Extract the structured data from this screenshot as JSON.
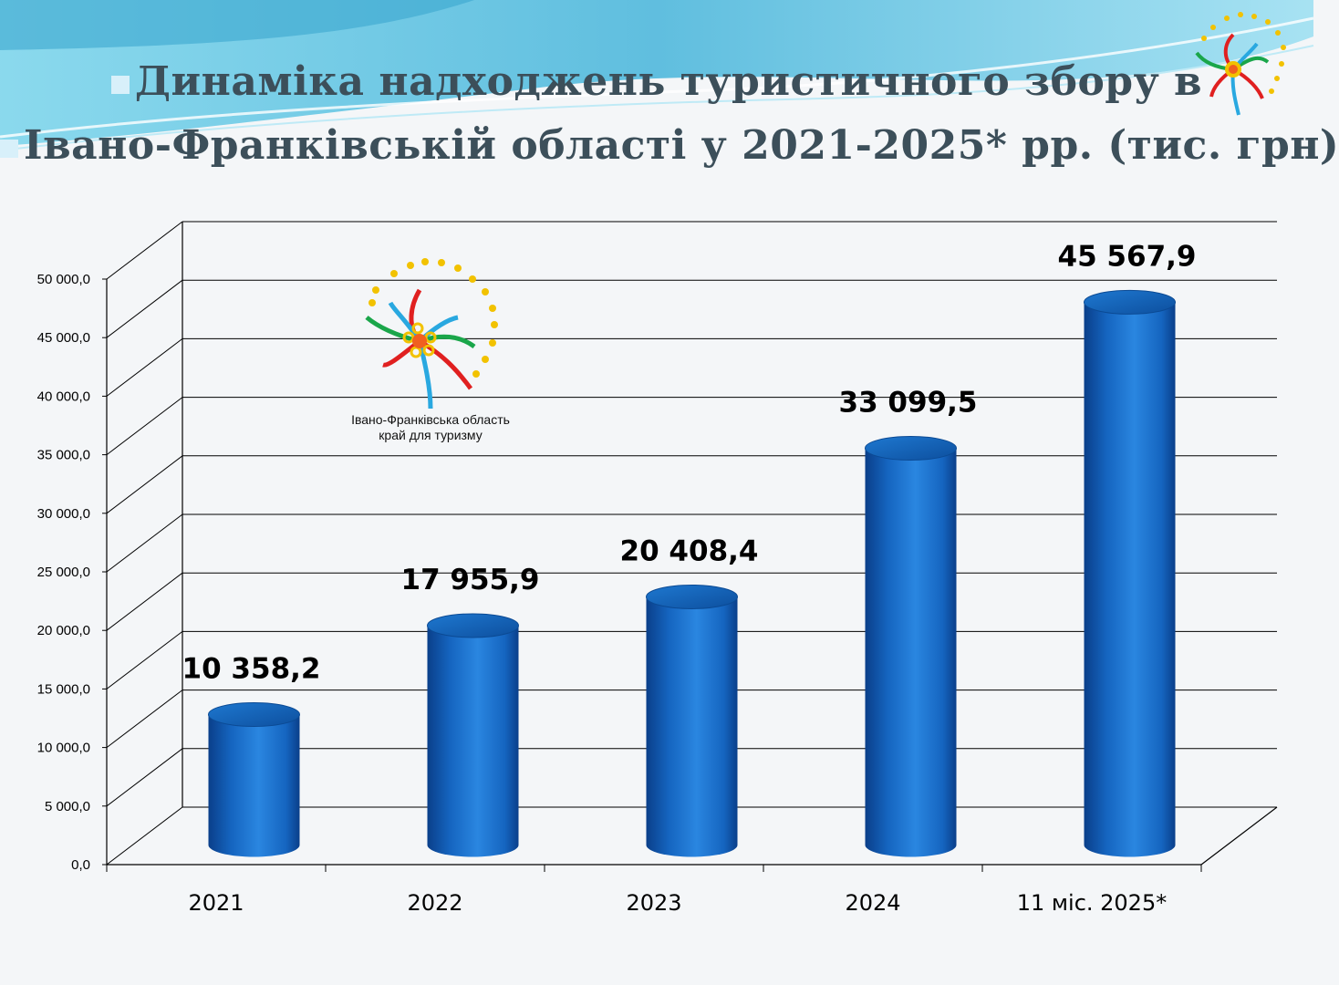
{
  "title": {
    "line1": "Динаміка надходжень туристичного збору в",
    "line2": "Івано-Франківській області у 2021-2025* рр. (тис. грн)"
  },
  "logo": {
    "caption_line1": "Івано-Франківська область",
    "caption_line2": "край для туризму"
  },
  "colors": {
    "bar": "#1565c0",
    "bar_highlight": "#2a86e0",
    "grid": "#000000",
    "header_wave": "#5bc5e4"
  },
  "chart_data": {
    "type": "bar",
    "categories": [
      "2021",
      "2022",
      "2023",
      "2024",
      "11 міс. 2025*"
    ],
    "values": [
      10358.2,
      17955.9,
      20408.4,
      33099.5,
      45567.9
    ],
    "value_labels": [
      "10 358,2",
      "17 955,9",
      "20 408,4",
      "33 099,5",
      "45 567,9"
    ],
    "y_ticks": [
      "0,0",
      "5 000,0",
      "10 000,0",
      "15 000,0",
      "20 000,0",
      "25 000,0",
      "30 000,0",
      "35 000,0",
      "40 000,0",
      "45 000,0",
      "50 000,0"
    ],
    "ylim": [
      0,
      50000
    ],
    "ytick_step": 5000,
    "grid": true,
    "legend": "none",
    "style": "3d-cylinder"
  }
}
